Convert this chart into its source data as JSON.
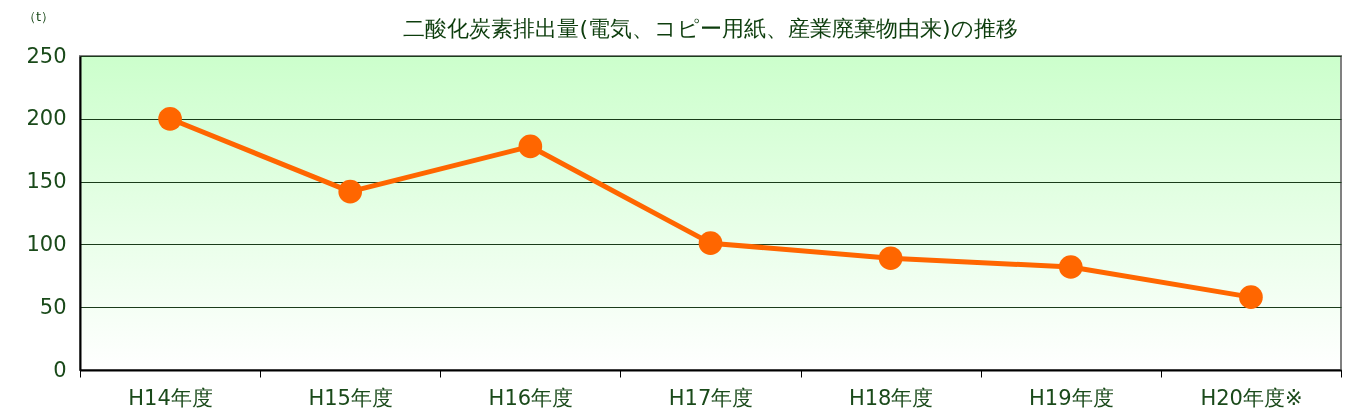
{
  "chart_data": {
    "type": "line",
    "title": "二酸化炭素排出量(電気、コピー用紙、産業廃棄物由来)の推移",
    "ylabel": "（t）",
    "categories": [
      "H14年度",
      "H15年度",
      "H16年度",
      "H17年度",
      "H18年度",
      "H19年度",
      "H20年度※"
    ],
    "series": [
      {
        "color": "#ff6600",
        "values": [
          200,
          142,
          178,
          101,
          89,
          82,
          58
        ]
      }
    ],
    "ylim": [
      0,
      250
    ],
    "yticks": [
      0,
      50,
      100,
      150,
      200,
      250
    ],
    "grid": "y",
    "legend": false,
    "marker": "circle",
    "line_style": "solid"
  }
}
